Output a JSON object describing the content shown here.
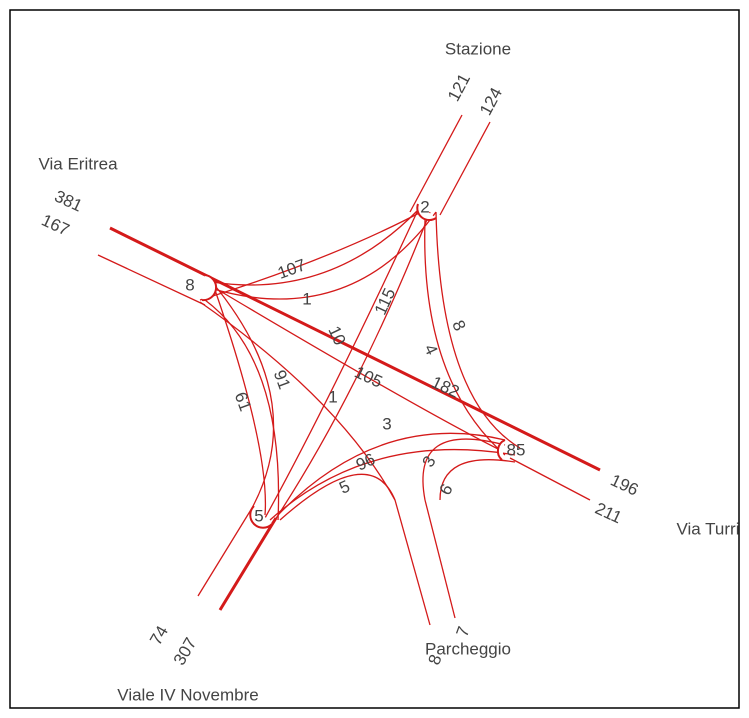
{
  "approaches": [
    {
      "name": "Stazione",
      "counts": [
        121,
        124
      ],
      "node": 2
    },
    {
      "name": "Via Eritrea",
      "counts": [
        381,
        167
      ],
      "node": 8
    },
    {
      "name": "Via Turri",
      "counts": [
        196,
        211
      ],
      "node": 85
    },
    {
      "name": "Viale IV Novembre",
      "counts": [
        74,
        307
      ],
      "node": 5
    },
    {
      "name": "Parcheggio",
      "counts": [
        8,
        7
      ]
    }
  ],
  "flows": [
    107,
    1,
    10,
    115,
    4,
    8,
    105,
    182,
    61,
    91,
    1,
    3,
    96,
    5,
    3,
    6
  ]
}
